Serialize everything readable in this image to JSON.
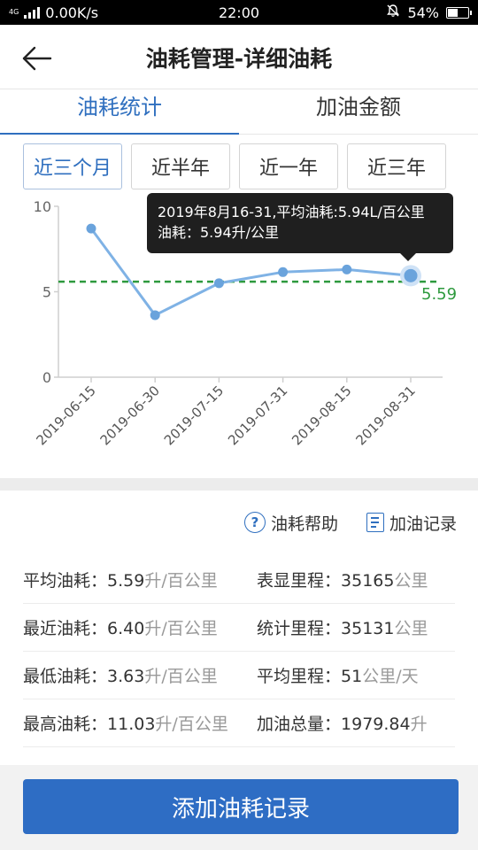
{
  "status_bar": {
    "network": "4G",
    "network_sub": "4G",
    "speed": "0.00K/s",
    "time": "22:00",
    "battery": "54%",
    "battery_level": 0.54
  },
  "header": {
    "title": "油耗管理-详细油耗"
  },
  "tabs": [
    {
      "label": "油耗统计",
      "active": true
    },
    {
      "label": "加油金额",
      "active": false
    }
  ],
  "ranges": [
    {
      "label": "近三个月",
      "active": true
    },
    {
      "label": "近半年",
      "active": false
    },
    {
      "label": "近一年",
      "active": false
    },
    {
      "label": "近三年",
      "active": false
    }
  ],
  "chart_data": {
    "type": "line",
    "x": [
      "2019-06-15",
      "2019-06-30",
      "2019-07-15",
      "2019-07-31",
      "2019-08-15",
      "2019-08-31"
    ],
    "values": [
      8.7,
      3.63,
      5.5,
      6.15,
      6.3,
      5.94
    ],
    "yticks": [
      0,
      5,
      10
    ],
    "ylim": [
      0,
      10
    ],
    "average_line": {
      "value": 5.59,
      "label": "5.59"
    },
    "highlight_index": 5,
    "grid": false,
    "colors": {
      "line": "#7fb2e5",
      "point": "#6aa3dc",
      "average": "#2e9a3e"
    },
    "tooltip": {
      "line1": "2019年8月16-31,平均油耗:5.94L/百公里",
      "line2": "油耗：5.94升/公里"
    }
  },
  "links": {
    "help_label": "油耗帮助",
    "help_icon": "question-circle-icon",
    "record_label": "加油记录",
    "record_icon": "document-list-icon"
  },
  "stats": [
    {
      "left": {
        "label": "平均油耗：",
        "value": "5.59",
        "unit": "升/百公里"
      },
      "right": {
        "label": "表显里程：",
        "value": "35165",
        "unit": "公里"
      }
    },
    {
      "left": {
        "label": "最近油耗：",
        "value": "6.40",
        "unit": "升/百公里"
      },
      "right": {
        "label": "统计里程：",
        "value": "35131",
        "unit": "公里"
      }
    },
    {
      "left": {
        "label": "最低油耗：",
        "value": "3.63",
        "unit": "升/百公里"
      },
      "right": {
        "label": "平均里程：",
        "value": "51",
        "unit": "公里/天"
      }
    },
    {
      "left": {
        "label": "最高油耗：",
        "value": "11.03",
        "unit": "升/百公里"
      },
      "right": {
        "label": "加油总量：",
        "value": "1979.84",
        "unit": "升"
      }
    }
  ],
  "add_button": {
    "label": "添加油耗记录"
  },
  "colors": {
    "accent": "#2f6fbf",
    "button": "#2e6dc4"
  }
}
